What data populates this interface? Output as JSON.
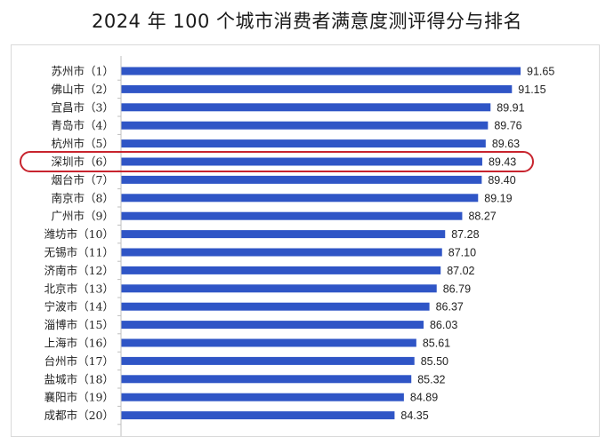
{
  "chart_title": "2024 年 100 个城市消费者满意度测评得分与排名",
  "colors": {
    "bar": "#2f55c6",
    "highlight": "#c8242e",
    "axis": "#bfbfbf"
  },
  "chart_data": {
    "type": "bar",
    "orientation": "horizontal",
    "title": "2024 年 100 个城市消费者满意度测评得分与排名",
    "categories": [
      "苏州市（1）",
      "佛山市（2）",
      "宜昌市（3）",
      "青岛市（4）",
      "杭州市（5）",
      "深圳市（6）",
      "烟台市（7）",
      "南京市（8）",
      "广州市（9）",
      "潍坊市（10）",
      "无锡市（11）",
      "济南市（12）",
      "北京市（13）",
      "宁波市（14）",
      "淄博市（15）",
      "上海市（16）",
      "台州市（17）",
      "盐城市（18）",
      "襄阳市（19）",
      "成都市（20）"
    ],
    "values": [
      91.65,
      91.15,
      89.91,
      89.76,
      89.63,
      89.43,
      89.4,
      89.19,
      88.27,
      87.28,
      87.1,
      87.02,
      86.79,
      86.37,
      86.03,
      85.61,
      85.5,
      85.32,
      84.89,
      84.35
    ],
    "value_labels": [
      "91.65",
      "91.15",
      "89.91",
      "89.76",
      "89.63",
      "89.43",
      "89.40",
      "89.19",
      "88.27",
      "87.28",
      "87.10",
      "87.02",
      "86.79",
      "86.37",
      "86.03",
      "85.61",
      "85.50",
      "85.32",
      "84.89",
      "84.35"
    ],
    "highlighted_category": "深圳市（6）",
    "xlim": [
      68.5,
      91.65
    ],
    "grid": false,
    "legend": "none"
  }
}
